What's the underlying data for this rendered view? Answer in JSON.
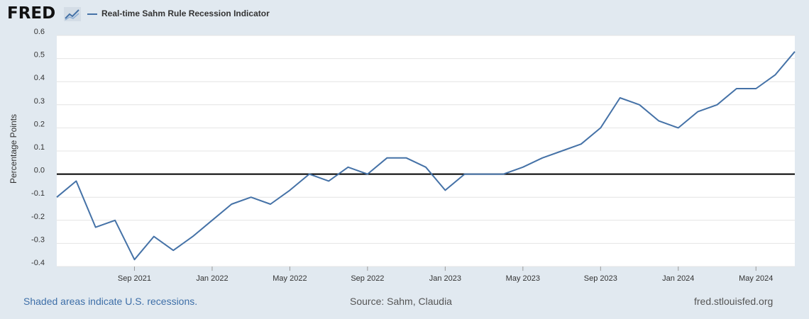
{
  "brand": {
    "logo_text": "FRED",
    "logo_icon": "line-chart-icon"
  },
  "colors": {
    "series": "#4572a7",
    "zero_line": "#000000",
    "grid": "#e4e4e4",
    "plot_bg": "#ffffff",
    "page_bg": "#e1e9f0"
  },
  "footer": {
    "left": "Shaded areas indicate U.S. recessions.",
    "middle": "Source: Sahm, Claudia",
    "right": "fred.stlouisfed.org"
  },
  "chart_data": {
    "type": "line",
    "title": "",
    "xlabel": "",
    "ylabel": "Percentage Points",
    "ylim": [
      -0.4,
      0.6
    ],
    "yticks": [
      "0.6",
      "0.5",
      "0.4",
      "0.3",
      "0.2",
      "0.1",
      "0.0",
      "-0.1",
      "-0.2",
      "-0.3",
      "-0.4"
    ],
    "xlim": [
      "2021-05",
      "2024-07"
    ],
    "xticks": [
      {
        "label": "Sep 2021",
        "x": "2021-09"
      },
      {
        "label": "Jan 2022",
        "x": "2022-01"
      },
      {
        "label": "May 2022",
        "x": "2022-05"
      },
      {
        "label": "Sep 2022",
        "x": "2022-09"
      },
      {
        "label": "Jan 2023",
        "x": "2023-01"
      },
      {
        "label": "May 2023",
        "x": "2023-05"
      },
      {
        "label": "Sep 2023",
        "x": "2023-09"
      },
      {
        "label": "Jan 2024",
        "x": "2024-01"
      },
      {
        "label": "May 2024",
        "x": "2024-05"
      }
    ],
    "grid": true,
    "zero_line": true,
    "legend": "top-left",
    "series": [
      {
        "name": "Real-time Sahm Rule Recession Indicator",
        "x": [
          "2021-05",
          "2021-06",
          "2021-07",
          "2021-08",
          "2021-09",
          "2021-10",
          "2021-11",
          "2021-12",
          "2022-01",
          "2022-02",
          "2022-03",
          "2022-04",
          "2022-05",
          "2022-06",
          "2022-07",
          "2022-08",
          "2022-09",
          "2022-10",
          "2022-11",
          "2022-12",
          "2023-01",
          "2023-02",
          "2023-03",
          "2023-04",
          "2023-05",
          "2023-06",
          "2023-07",
          "2023-08",
          "2023-09",
          "2023-10",
          "2023-11",
          "2023-12",
          "2024-01",
          "2024-02",
          "2024-03",
          "2024-04",
          "2024-05",
          "2024-06",
          "2024-07"
        ],
        "values": [
          -0.1,
          -0.03,
          -0.23,
          -0.2,
          -0.37,
          -0.27,
          -0.33,
          -0.27,
          -0.2,
          -0.13,
          -0.1,
          -0.13,
          -0.07,
          0.0,
          -0.03,
          0.03,
          0.0,
          0.07,
          0.07,
          0.03,
          -0.07,
          0.0,
          0.0,
          0.0,
          0.03,
          0.07,
          0.1,
          0.13,
          0.2,
          0.33,
          0.3,
          0.23,
          0.2,
          0.27,
          0.3,
          0.37,
          0.37,
          0.43,
          0.53
        ]
      }
    ]
  }
}
